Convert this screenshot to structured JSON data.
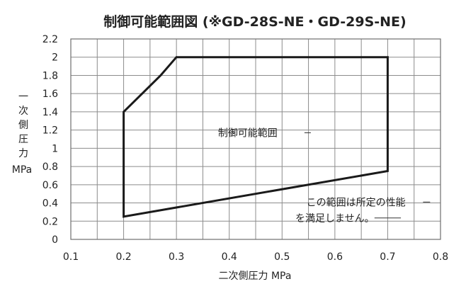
{
  "chart_data": {
    "type": "line",
    "title": "制御可能範囲図 (※GD-28S-NE・GD-29S-NE)",
    "xlabel": "二次側圧力 MPa",
    "ylabel_chars": [
      "一",
      "次",
      "側",
      "圧",
      "力"
    ],
    "ylabel_unit": "MPa",
    "xlim": [
      0.1,
      0.8
    ],
    "ylim": [
      0,
      2.2
    ],
    "x_ticks": [
      0.1,
      0.2,
      0.3,
      0.4,
      0.5,
      0.6,
      0.7,
      0.8
    ],
    "x_tick_labels": [
      "0.1",
      "0.2",
      "0.3",
      "0.4",
      "0.5",
      "0.6",
      "0.7",
      "0.8"
    ],
    "y_ticks": [
      0,
      0.2,
      0.4,
      0.6,
      0.8,
      1.0,
      1.2,
      1.4,
      1.6,
      1.8,
      2.0,
      2.2
    ],
    "y_tick_labels": [
      "0",
      "0.2",
      "0.4",
      "0.6",
      "0.8",
      "1",
      "1.2",
      "1.4",
      "1.6",
      "1.8",
      "2",
      "2.2"
    ],
    "x_grid_step": 0.05,
    "y_grid_step": 0.2,
    "grid": true,
    "region": {
      "x": [
        0.2,
        0.2,
        0.27,
        0.3,
        0.7,
        0.7,
        0.2
      ],
      "y": [
        0.25,
        1.4,
        1.8,
        2.0,
        2.0,
        0.75,
        0.25
      ]
    },
    "annotations": {
      "inside": "制御可能範囲",
      "outside_line1": "この範囲は所定の性能",
      "outside_line2": "を満足しません。"
    }
  }
}
